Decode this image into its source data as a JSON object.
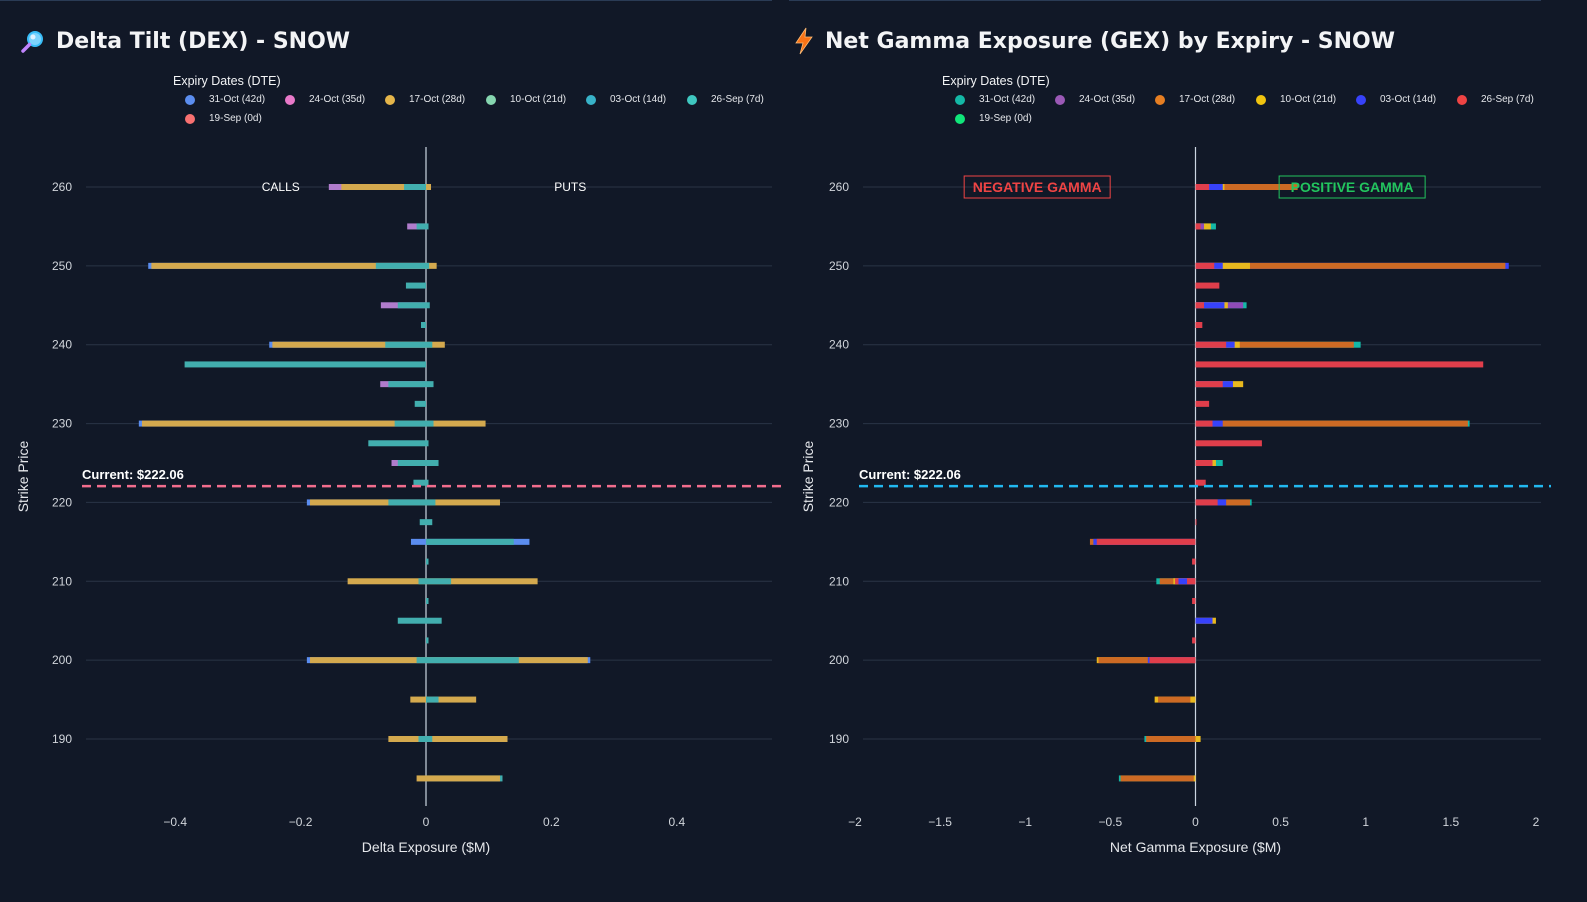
{
  "chart_data": [
    {
      "type": "bar",
      "orientation": "horizontal-stacked",
      "title": "Delta Tilt (DEX) - SNOW",
      "title_icon": "magnifier-icon",
      "xlabel": "Delta Exposure ($M)",
      "ylabel": "Strike Price",
      "xlim": [
        -0.55,
        0.55
      ],
      "ylim": [
        181,
        268
      ],
      "xticks": [
        -0.4,
        -0.2,
        0,
        0.2,
        0.4
      ],
      "xtick_labels": [
        "−0.4",
        "−0.2",
        "0",
        "0.2",
        "0.4"
      ],
      "yticks": [
        190,
        200,
        210,
        220,
        230,
        240,
        250,
        260
      ],
      "legend_title": "Expiry Dates (DTE)",
      "series": [
        {
          "name": "31-Oct (42d)",
          "color": "#5b8def"
        },
        {
          "name": "24-Oct (35d)",
          "color": "#e879c9"
        },
        {
          "name": "17-Oct (28d)",
          "color": "#e5b54a"
        },
        {
          "name": "10-Oct (21d)",
          "color": "#86d6b0"
        },
        {
          "name": "03-Oct (14d)",
          "color": "#38b2c8"
        },
        {
          "name": "26-Sep (7d)",
          "color": "#3fc7c0"
        },
        {
          "name": "19-Sep (0d)",
          "color": "#f87171"
        }
      ],
      "bar_palette": {
        "far": "#d4a94e",
        "near": "#42aeae",
        "mid": "#b07ccc",
        "deep": "#5b8def"
      },
      "bars": [
        {
          "strike": 260,
          "left": [
            [
              "mid",
              -0.155
            ],
            [
              "far",
              -0.135
            ],
            [
              "near",
              -0.035
            ]
          ],
          "right": [
            [
              "far",
              0.008
            ]
          ]
        },
        {
          "strike": 255,
          "left": [
            [
              "mid",
              -0.03
            ],
            [
              "near",
              -0.015
            ]
          ],
          "right": [
            [
              "near",
              0.004
            ]
          ]
        },
        {
          "strike": 250,
          "left": [
            [
              "deep",
              -0.443
            ],
            [
              "far",
              -0.438
            ],
            [
              "near",
              -0.08
            ]
          ],
          "right": [
            [
              "near",
              0.005
            ],
            [
              "far",
              0.017
            ]
          ]
        },
        {
          "strike": 247.5,
          "left": [
            [
              "near",
              -0.032
            ]
          ],
          "right": []
        },
        {
          "strike": 245,
          "left": [
            [
              "mid",
              -0.072
            ],
            [
              "near",
              -0.045
            ]
          ],
          "right": [
            [
              "near",
              0.006
            ]
          ]
        },
        {
          "strike": 242.5,
          "left": [
            [
              "near",
              -0.008
            ]
          ],
          "right": []
        },
        {
          "strike": 240,
          "left": [
            [
              "deep",
              -0.25
            ],
            [
              "far",
              -0.245
            ],
            [
              "near",
              -0.065
            ]
          ],
          "right": [
            [
              "near",
              0.01
            ],
            [
              "far",
              0.03
            ]
          ]
        },
        {
          "strike": 237.5,
          "left": [
            [
              "near",
              -0.385
            ]
          ],
          "right": []
        },
        {
          "strike": 235,
          "left": [
            [
              "mid",
              -0.073
            ],
            [
              "near",
              -0.06
            ]
          ],
          "right": [
            [
              "near",
              0.012
            ]
          ]
        },
        {
          "strike": 232.5,
          "left": [
            [
              "near",
              -0.018
            ]
          ],
          "right": []
        },
        {
          "strike": 230,
          "left": [
            [
              "deep",
              -0.458
            ],
            [
              "far",
              -0.453
            ],
            [
              "near",
              -0.05
            ]
          ],
          "right": [
            [
              "near",
              0.012
            ],
            [
              "far",
              0.095
            ]
          ]
        },
        {
          "strike": 227.5,
          "left": [
            [
              "near",
              -0.092
            ]
          ],
          "right": [
            [
              "near",
              0.004
            ]
          ]
        },
        {
          "strike": 225,
          "left": [
            [
              "mid",
              -0.055
            ],
            [
              "near",
              -0.045
            ]
          ],
          "right": [
            [
              "near",
              0.02
            ]
          ]
        },
        {
          "strike": 222.5,
          "left": [
            [
              "near",
              -0.02
            ]
          ],
          "right": [
            [
              "near",
              0.004
            ]
          ]
        },
        {
          "strike": 220,
          "left": [
            [
              "deep",
              -0.19
            ],
            [
              "far",
              -0.185
            ],
            [
              "near",
              -0.06
            ]
          ],
          "right": [
            [
              "near",
              0.015
            ],
            [
              "far",
              0.118
            ]
          ]
        },
        {
          "strike": 217.5,
          "left": [
            [
              "near",
              -0.01
            ]
          ],
          "right": [
            [
              "near",
              0.01
            ]
          ]
        },
        {
          "strike": 215,
          "left": [
            [
              "deep",
              -0.024
            ]
          ],
          "right": [
            [
              "near",
              0.14
            ],
            [
              "deep",
              0.165
            ]
          ]
        },
        {
          "strike": 212.5,
          "left": [],
          "right": [
            [
              "near",
              0.004
            ]
          ]
        },
        {
          "strike": 210,
          "left": [
            [
              "far",
              -0.125
            ],
            [
              "near",
              -0.012
            ]
          ],
          "right": [
            [
              "near",
              0.04
            ],
            [
              "far",
              0.178
            ]
          ]
        },
        {
          "strike": 207.5,
          "left": [],
          "right": [
            [
              "near",
              0.004
            ]
          ]
        },
        {
          "strike": 205,
          "left": [
            [
              "near",
              -0.045
            ]
          ],
          "right": [
            [
              "near",
              0.025
            ]
          ]
        },
        {
          "strike": 202.5,
          "left": [],
          "right": [
            [
              "near",
              0.004
            ]
          ]
        },
        {
          "strike": 200,
          "left": [
            [
              "deep",
              -0.19
            ],
            [
              "far",
              -0.185
            ],
            [
              "near",
              -0.015
            ]
          ],
          "right": [
            [
              "near",
              0.148
            ],
            [
              "far",
              0.258
            ],
            [
              "deep",
              0.262
            ]
          ]
        },
        {
          "strike": 195,
          "left": [
            [
              "far",
              -0.025
            ]
          ],
          "right": [
            [
              "near",
              0.02
            ],
            [
              "far",
              0.08
            ]
          ]
        },
        {
          "strike": 190,
          "left": [
            [
              "far",
              -0.06
            ],
            [
              "near",
              -0.012
            ]
          ],
          "right": [
            [
              "near",
              0.01
            ],
            [
              "far",
              0.13
            ]
          ]
        },
        {
          "strike": 185,
          "left": [
            [
              "far",
              -0.015
            ]
          ],
          "right": [
            [
              "far",
              0.118
            ],
            [
              "near",
              0.122
            ]
          ]
        }
      ],
      "annotations": [
        {
          "text": "CALLS",
          "x": -0.23,
          "y": 260
        },
        {
          "text": "PUTS",
          "x": 0.23,
          "y": 260
        }
      ],
      "current_price": {
        "value": 222.06,
        "label": "Current: $222.06",
        "color": "#f26d8d"
      }
    },
    {
      "type": "bar",
      "orientation": "horizontal-stacked",
      "title": "Net Gamma Exposure (GEX) by Expiry - SNOW",
      "title_icon": "lightning-icon",
      "xlabel": "Net Gamma Exposure ($M)",
      "ylabel": "Strike Price",
      "xlim": [
        -2,
        2
      ],
      "ylim": [
        181,
        268
      ],
      "xticks": [
        -2,
        -1.5,
        -1,
        -0.5,
        0,
        0.5,
        1,
        1.5,
        2
      ],
      "xtick_labels": [
        "−2",
        "−1.5",
        "−1",
        "−0.5",
        "0",
        "0.5",
        "1",
        "1.5",
        "2"
      ],
      "yticks": [
        190,
        200,
        210,
        220,
        230,
        240,
        250,
        260
      ],
      "legend_title": "Expiry Dates (DTE)",
      "series": [
        {
          "name": "31-Oct (42d)",
          "color": "#14b8a6"
        },
        {
          "name": "24-Oct (35d)",
          "color": "#9b59b6"
        },
        {
          "name": "17-Oct (28d)",
          "color": "#e67e22"
        },
        {
          "name": "10-Oct (21d)",
          "color": "#f1c40f"
        },
        {
          "name": "03-Oct (14d)",
          "color": "#3742fa"
        },
        {
          "name": "26-Sep (7d)",
          "color": "#ef4444"
        },
        {
          "name": "19-Sep (0d)",
          "color": "#10e67a"
        }
      ],
      "bar_palette": {
        "red": "#e03e4b",
        "blue": "#3742fa",
        "orange": "#cd6a24",
        "yellow": "#e8b81e",
        "purple": "#8e4bb8",
        "teal": "#14b8a6"
      },
      "bars": [
        {
          "strike": 260,
          "segments": [
            [
              "red",
              0.08
            ],
            [
              "blue",
              0.16
            ],
            [
              "yellow",
              0.17
            ],
            [
              "orange",
              0.6
            ]
          ]
        },
        {
          "strike": 255,
          "segments": [
            [
              "red",
              0.03
            ],
            [
              "purple",
              0.05
            ],
            [
              "yellow",
              0.09
            ],
            [
              "teal",
              0.12
            ]
          ]
        },
        {
          "strike": 250,
          "segments": [
            [
              "red",
              0.11
            ],
            [
              "blue",
              0.16
            ],
            [
              "yellow",
              0.32
            ],
            [
              "orange",
              1.82
            ],
            [
              "blue",
              1.84
            ]
          ]
        },
        {
          "strike": 247.5,
          "segments": [
            [
              "red",
              0.14
            ]
          ]
        },
        {
          "strike": 245,
          "segments": [
            [
              "red",
              0.05
            ],
            [
              "blue",
              0.17
            ],
            [
              "yellow",
              0.19
            ],
            [
              "purple",
              0.28
            ],
            [
              "teal",
              0.3
            ]
          ]
        },
        {
          "strike": 242.5,
          "segments": [
            [
              "red",
              0.04
            ]
          ]
        },
        {
          "strike": 240,
          "segments": [
            [
              "red",
              0.18
            ],
            [
              "blue",
              0.23
            ],
            [
              "yellow",
              0.26
            ],
            [
              "orange",
              0.93
            ],
            [
              "teal",
              0.97
            ]
          ]
        },
        {
          "strike": 237.5,
          "segments": [
            [
              "red",
              1.69
            ]
          ]
        },
        {
          "strike": 235,
          "segments": [
            [
              "red",
              0.16
            ],
            [
              "blue",
              0.22
            ],
            [
              "yellow",
              0.28
            ]
          ]
        },
        {
          "strike": 232.5,
          "segments": [
            [
              "red",
              0.08
            ]
          ]
        },
        {
          "strike": 230,
          "segments": [
            [
              "red",
              0.1
            ],
            [
              "blue",
              0.16
            ],
            [
              "orange",
              1.6
            ],
            [
              "teal",
              1.61
            ]
          ]
        },
        {
          "strike": 227.5,
          "segments": [
            [
              "red",
              0.39
            ]
          ]
        },
        {
          "strike": 225,
          "segments": [
            [
              "red",
              0.1
            ],
            [
              "yellow",
              0.12
            ],
            [
              "teal",
              0.16
            ]
          ]
        },
        {
          "strike": 222.5,
          "segments": [
            [
              "red",
              0.06
            ]
          ]
        },
        {
          "strike": 220,
          "segments": [
            [
              "red",
              0.13
            ],
            [
              "blue",
              0.18
            ],
            [
              "orange",
              0.32
            ],
            [
              "teal",
              0.33
            ]
          ]
        },
        {
          "strike": 217.5,
          "segments": [
            [
              "red",
              0.005
            ]
          ]
        },
        {
          "strike": 215,
          "segments": [
            [
              "red",
              -0.58
            ],
            [
              "blue",
              -0.6
            ],
            [
              "orange",
              -0.62
            ]
          ]
        },
        {
          "strike": 212.5,
          "segments": [
            [
              "red",
              -0.02
            ]
          ]
        },
        {
          "strike": 210,
          "segments": [
            [
              "red",
              -0.05
            ],
            [
              "blue",
              -0.1
            ],
            [
              "red",
              -0.12
            ],
            [
              "yellow",
              -0.13
            ],
            [
              "orange",
              -0.21
            ],
            [
              "teal",
              -0.23
            ]
          ]
        },
        {
          "strike": 207.5,
          "segments": [
            [
              "red",
              -0.02
            ]
          ]
        },
        {
          "strike": 205,
          "segments": [
            [
              "blue",
              0.1
            ],
            [
              "yellow",
              0.12
            ]
          ]
        },
        {
          "strike": 202.5,
          "segments": [
            [
              "red",
              -0.02
            ]
          ]
        },
        {
          "strike": 200,
          "segments": [
            [
              "red",
              -0.27
            ],
            [
              "blue",
              -0.28
            ],
            [
              "orange",
              -0.57
            ],
            [
              "yellow",
              -0.58
            ]
          ]
        },
        {
          "strike": 195,
          "segments": [
            [
              "yellow",
              -0.03
            ],
            [
              "orange",
              -0.22
            ],
            [
              "yellow",
              -0.24
            ]
          ]
        },
        {
          "strike": 190,
          "segments": [
            [
              "yellow",
              0.03
            ],
            [
              "orange",
              -0.29
            ],
            [
              "teal",
              -0.3
            ]
          ]
        },
        {
          "strike": 185,
          "segments": [
            [
              "yellow",
              -0.01
            ],
            [
              "orange",
              -0.44
            ],
            [
              "teal",
              -0.45
            ]
          ]
        }
      ],
      "annotations": [
        {
          "text": "NEGATIVE GAMMA",
          "x": -0.93,
          "y": 260,
          "color": "#ef4444"
        },
        {
          "text": "POSITIVE GAMMA",
          "x": 0.92,
          "y": 260,
          "color": "#22c55e"
        }
      ],
      "current_price": {
        "value": 222.06,
        "label": "Current: $222.06",
        "color": "#22b8f0"
      }
    }
  ]
}
